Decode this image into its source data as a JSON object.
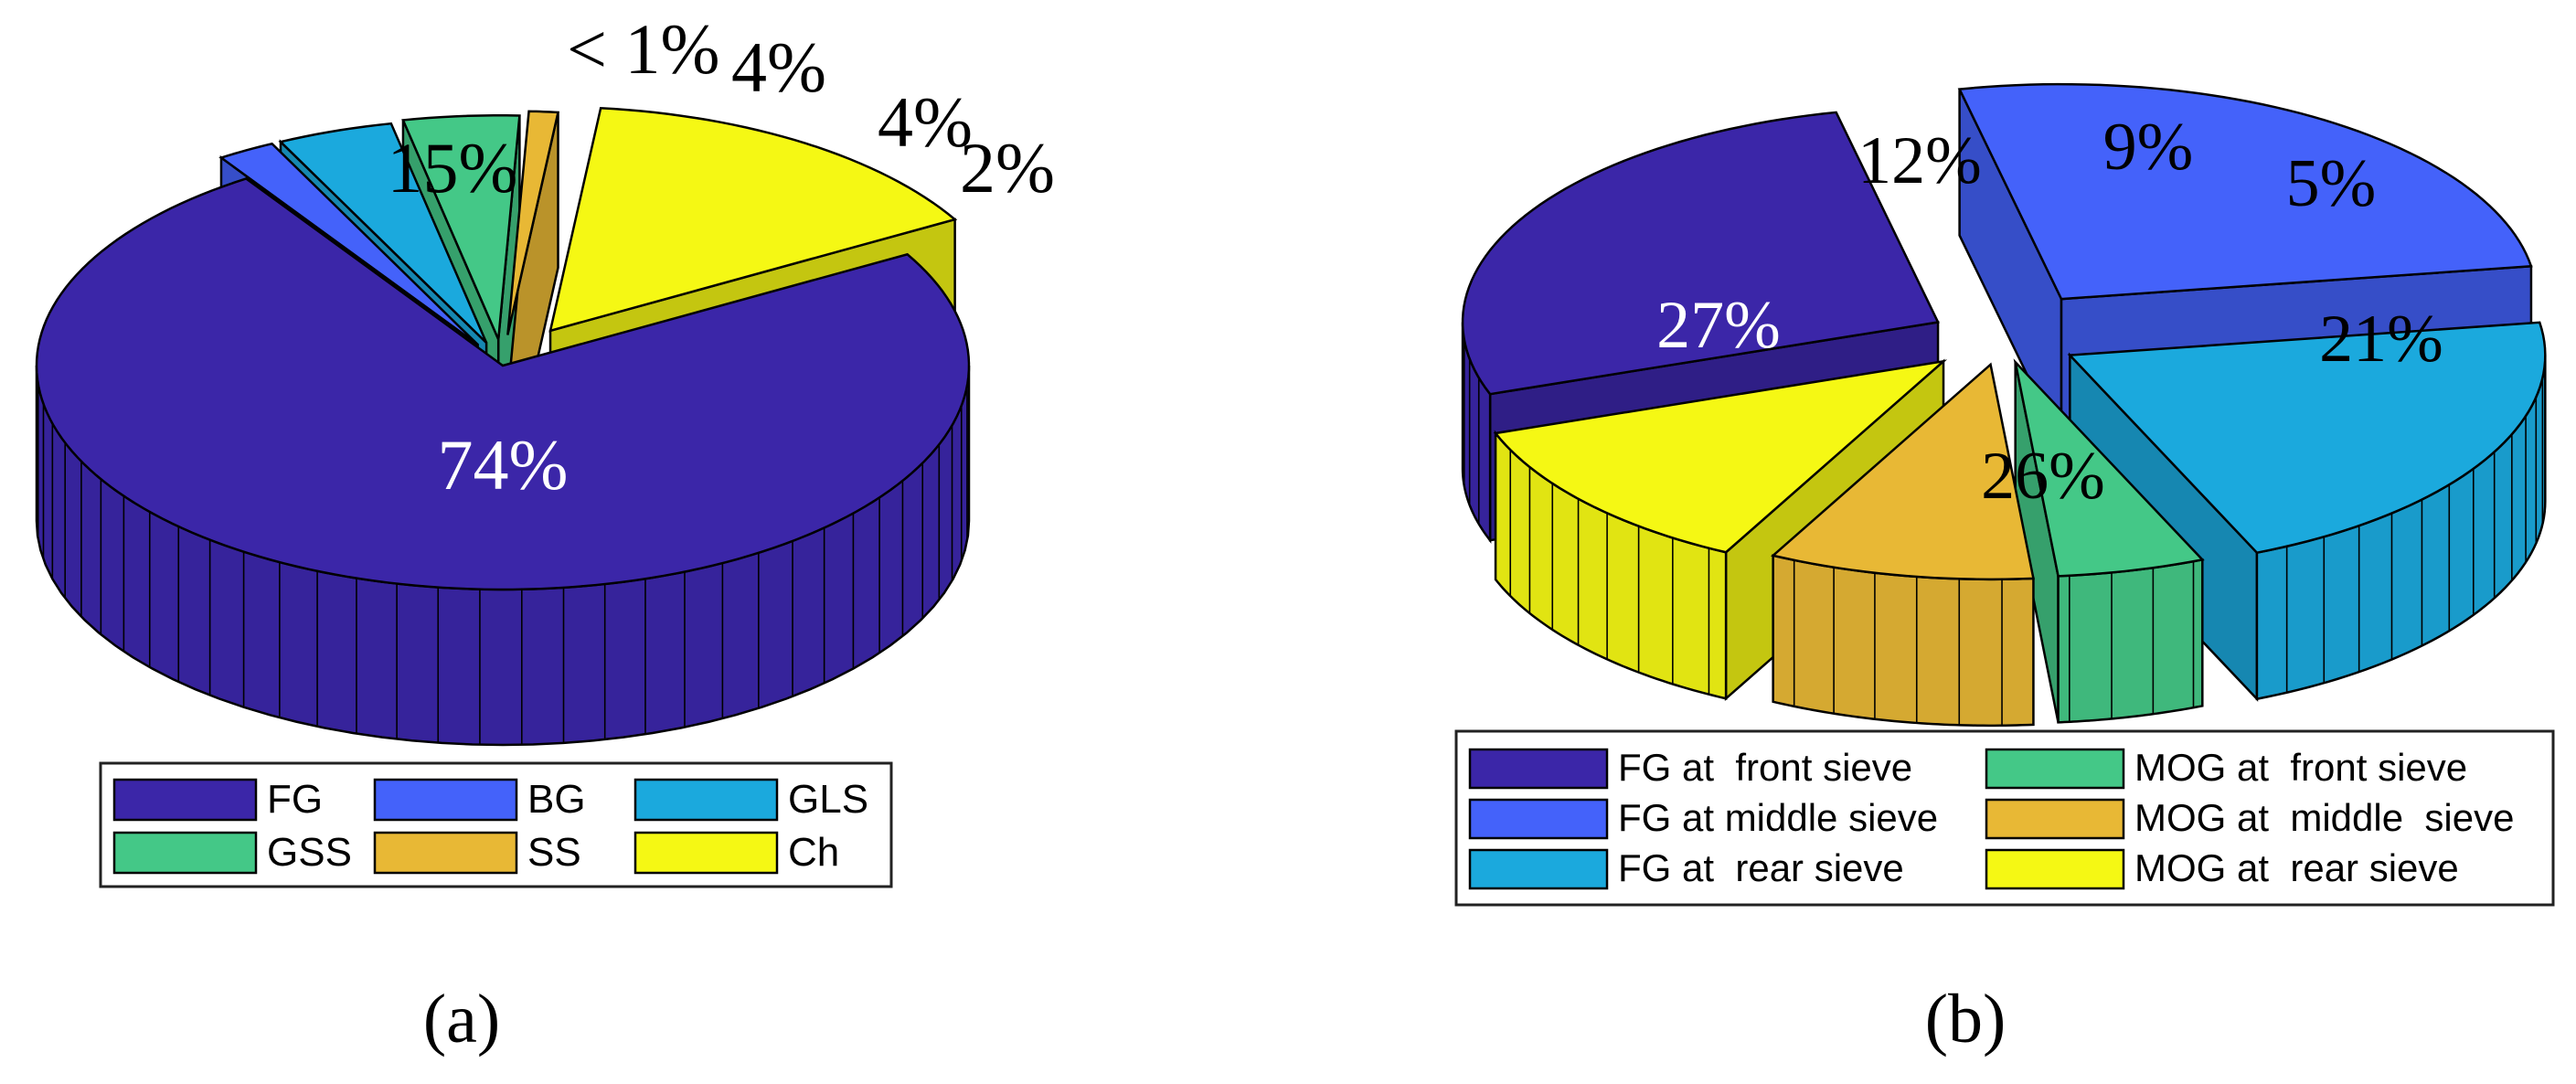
{
  "chart_data": [
    {
      "type": "pie",
      "style": "3d-exploded",
      "panel_label": "(a)",
      "categories": [
        "FG",
        "BG",
        "GLS",
        "GSS",
        "SS",
        "Ch"
      ],
      "slices": [
        {
          "name": "FG",
          "value": 74,
          "label": "74%",
          "color": "#3b26a8"
        },
        {
          "name": "BG",
          "value": 2,
          "label": "2%",
          "color": "#4462fa"
        },
        {
          "name": "GLS",
          "value": 4,
          "label": "4%",
          "color": "#1ba9dd"
        },
        {
          "name": "GSS",
          "value": 4,
          "label": "4%",
          "color": "#44c887"
        },
        {
          "name": "SS",
          "value": 1,
          "label": "< 1%",
          "color": "#e8b835"
        },
        {
          "name": "Ch",
          "value": 15,
          "label": "15%",
          "color": "#f5f814"
        }
      ],
      "legend": {
        "placement": "bottom",
        "entries": [
          "FG",
          "BG",
          "GLS",
          "GSS",
          "SS",
          "Ch"
        ]
      }
    },
    {
      "type": "pie",
      "style": "3d-exploded",
      "panel_label": "(b)",
      "categories": [
        "FG at  front sieve",
        "FG at middle sieve",
        "FG at  rear sieve",
        "MOG at  front sieve",
        "MOG at  middle  sieve",
        "MOG at  rear sieve"
      ],
      "slices": [
        {
          "name": "FG at  front sieve",
          "value": 27,
          "label": "27%",
          "color": "#3b26a8"
        },
        {
          "name": "FG at middle sieve",
          "value": 26,
          "label": "26%",
          "color": "#4462fa"
        },
        {
          "name": "FG at  rear sieve",
          "value": 21,
          "label": "21%",
          "color": "#1ba9dd"
        },
        {
          "name": "MOG at  front sieve",
          "value": 5,
          "label": "5%",
          "color": "#44c887"
        },
        {
          "name": "MOG at  middle  sieve",
          "value": 9,
          "label": "9%",
          "color": "#e8b835"
        },
        {
          "name": "MOG at  rear sieve",
          "value": 12,
          "label": "12%",
          "color": "#f5f814"
        }
      ],
      "legend": {
        "placement": "bottom",
        "entries": [
          "FG at  front sieve",
          "MOG at  front sieve",
          "FG at middle sieve",
          "MOG at  middle  sieve",
          "FG at  rear sieve",
          "MOG at  rear sieve"
        ]
      }
    }
  ],
  "colors": {
    "outline": "#000000",
    "background": "#ffffff"
  }
}
